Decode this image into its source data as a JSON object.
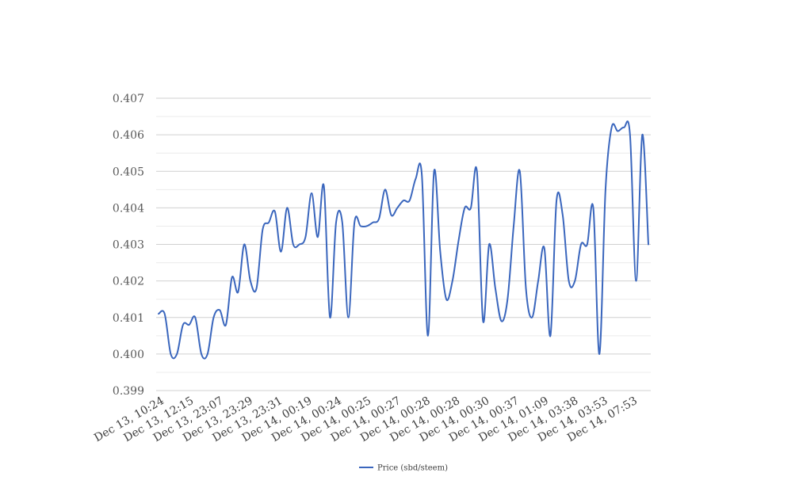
{
  "chart_data": {
    "type": "line",
    "title": "",
    "xlabel": "",
    "ylabel": "",
    "ylim": [
      0.399,
      0.407
    ],
    "y_ticks": [
      "0.399",
      "0.400",
      "0.401",
      "0.402",
      "0.403",
      "0.404",
      "0.405",
      "0.406",
      "0.407"
    ],
    "x_tick_labels": [
      "Dec 13, 10:24",
      "Dec 13, 12:15",
      "Dec 13, 23:07",
      "Dec 13, 23:29",
      "Dec 13, 23:31",
      "Dec 14, 00:19",
      "Dec 14, 00:24",
      "Dec 14, 00:25",
      "Dec 14, 00:27",
      "Dec 14, 00:28",
      "Dec 14, 00:28",
      "Dec 14, 00:30",
      "Dec 14, 00:37",
      "Dec 14, 01:09",
      "Dec 14, 03:38",
      "Dec 14, 03:53",
      "Dec 14, 07:53"
    ],
    "legend_position": "bottom",
    "grid": true,
    "series": [
      {
        "name": "Price (sbd/steem)",
        "color": "#3a66bd",
        "values": [
          0.4011,
          0.4011,
          0.4,
          0.4,
          0.4008,
          0.4008,
          0.401,
          0.4,
          0.4,
          0.401,
          0.4012,
          0.4008,
          0.4021,
          0.4017,
          0.403,
          0.402,
          0.4018,
          0.4034,
          0.4036,
          0.4039,
          0.4028,
          0.404,
          0.403,
          0.403,
          0.4032,
          0.4044,
          0.4032,
          0.4046,
          0.401,
          0.4036,
          0.4036,
          0.401,
          0.4036,
          0.4035,
          0.4035,
          0.4036,
          0.4037,
          0.4045,
          0.4038,
          0.404,
          0.4042,
          0.4042,
          0.4048,
          0.4049,
          0.4005,
          0.405,
          0.4028,
          0.4015,
          0.402,
          0.4031,
          0.404,
          0.404,
          0.405,
          0.4009,
          0.403,
          0.4018,
          0.4009,
          0.4015,
          0.4035,
          0.405,
          0.4018,
          0.401,
          0.402,
          0.4029,
          0.4005,
          0.4042,
          0.4038,
          0.402,
          0.402,
          0.403,
          0.403,
          0.404,
          0.4,
          0.4045,
          0.4062,
          0.4061,
          0.4062,
          0.406,
          0.402,
          0.406,
          0.403
        ]
      }
    ]
  }
}
